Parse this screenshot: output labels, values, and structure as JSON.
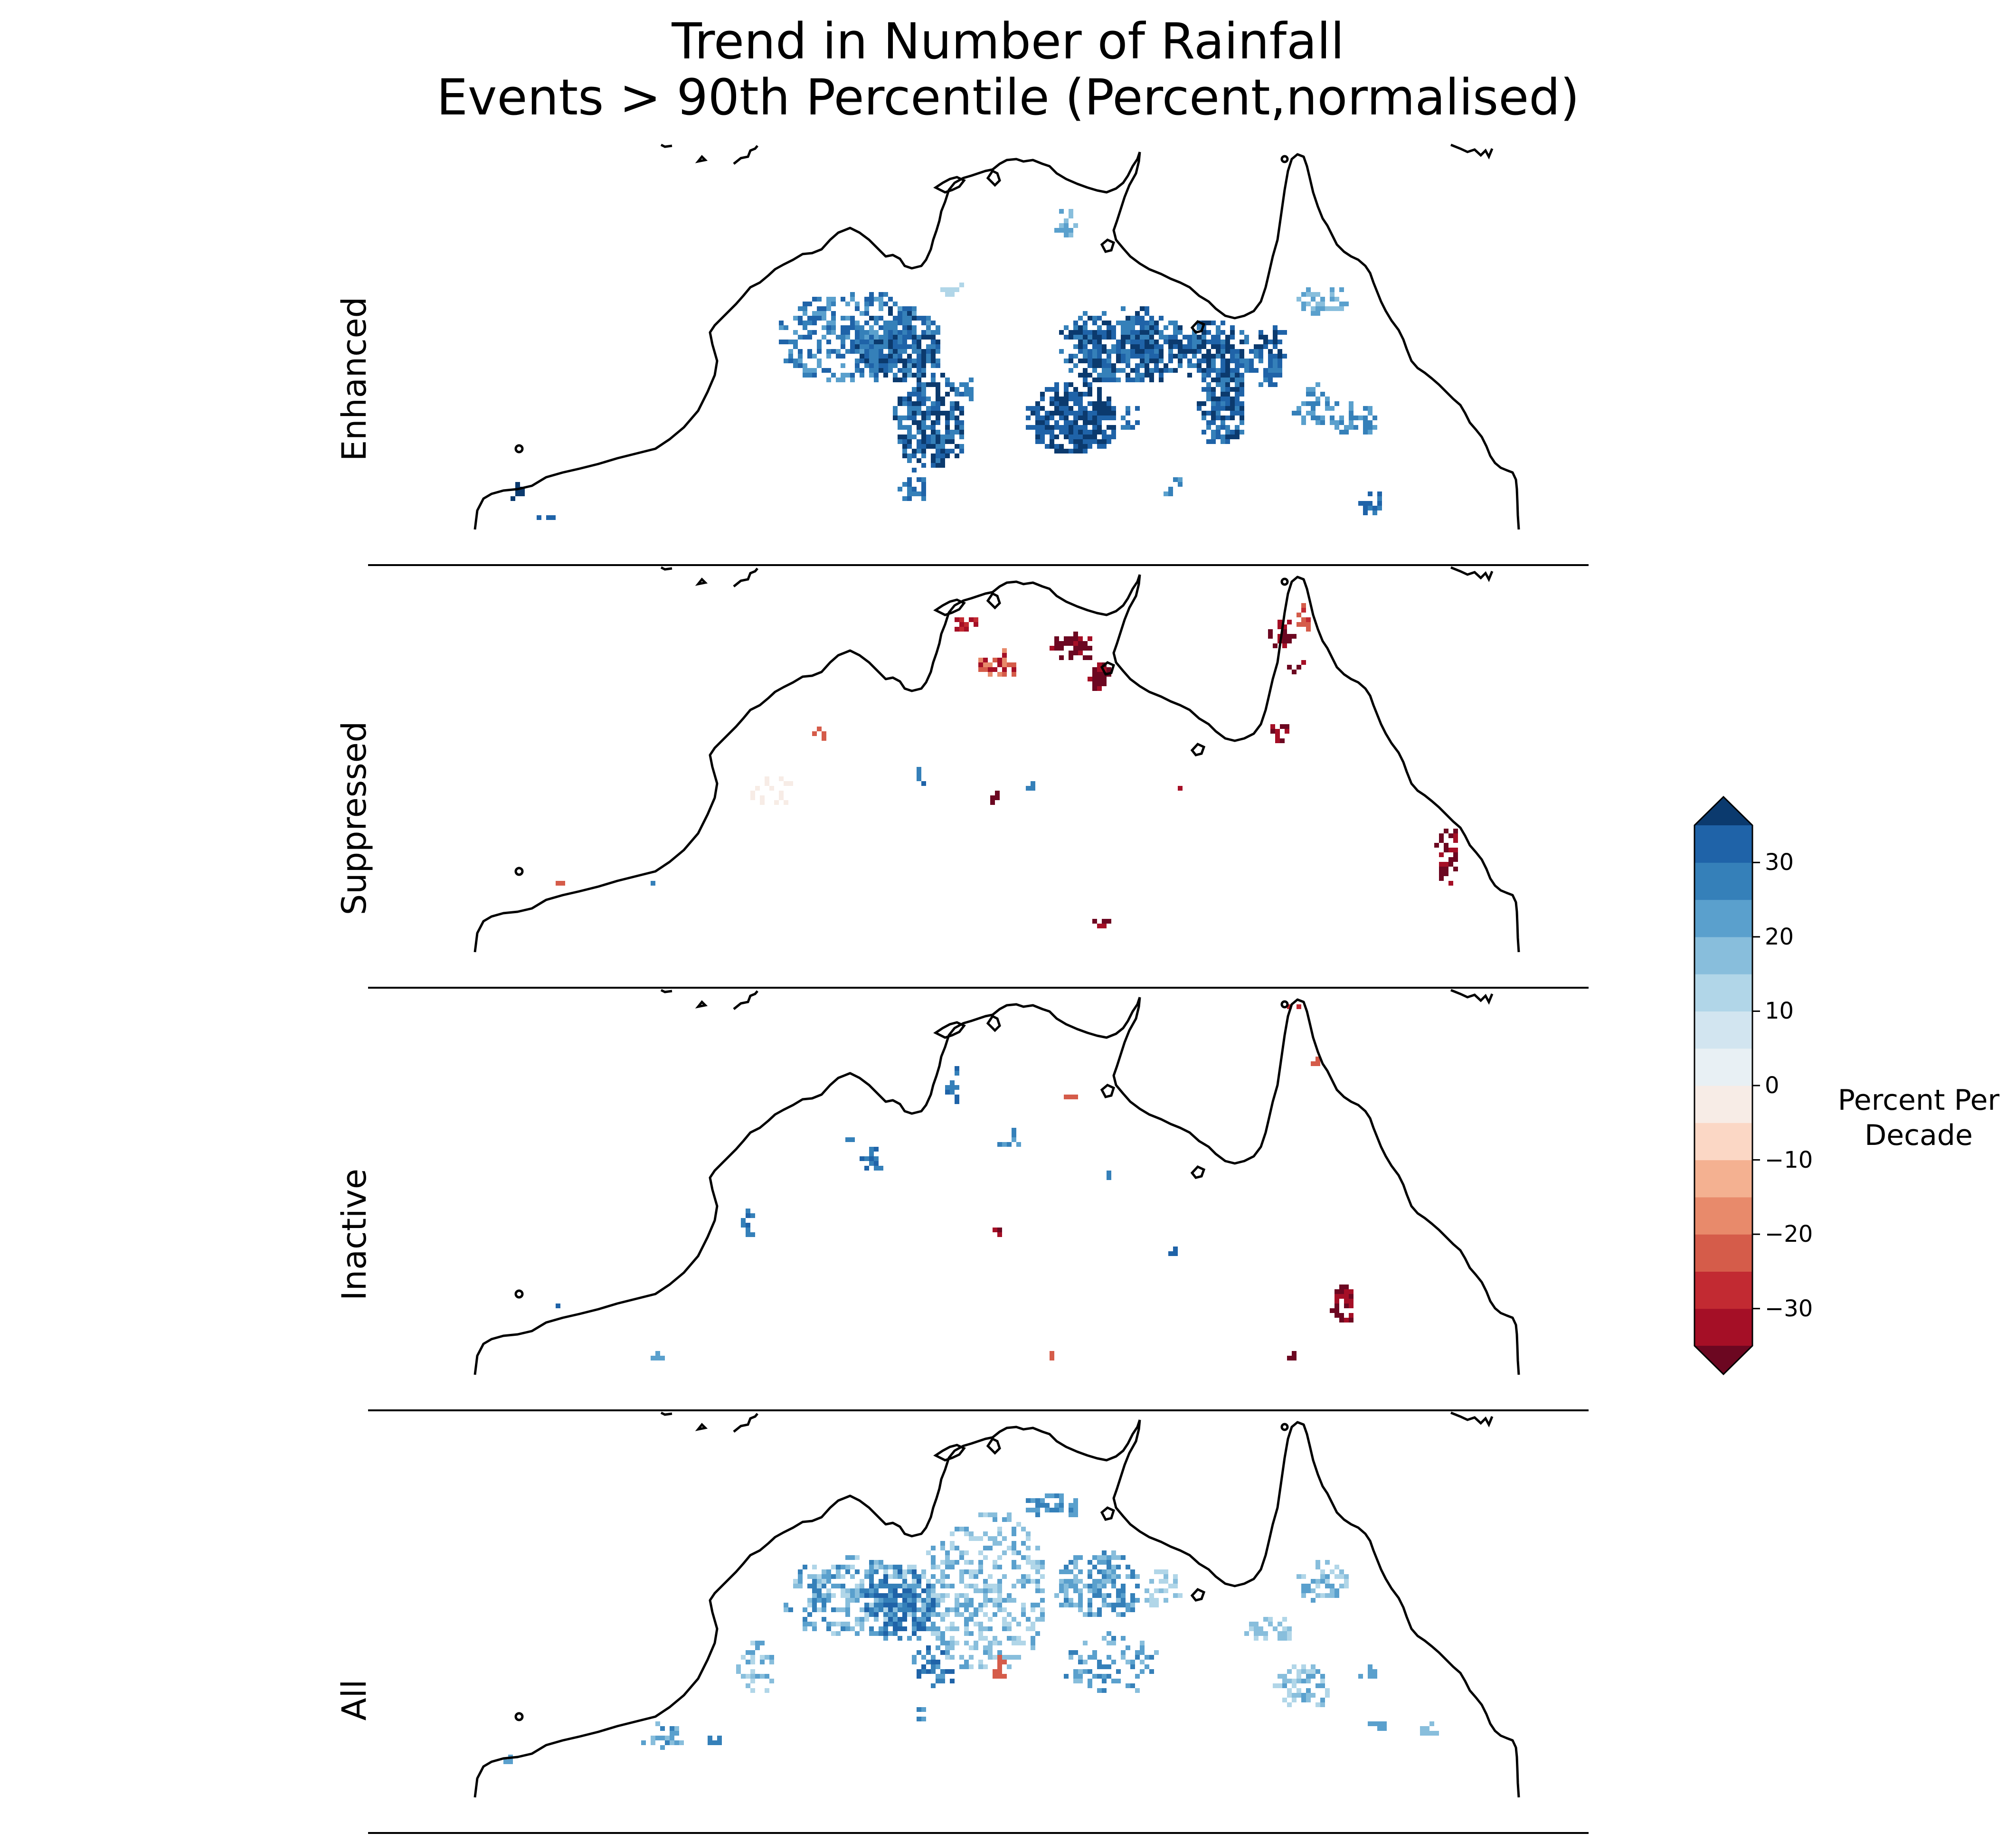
{
  "title": "Trend in Number of Rainfall\nEvents > 90th Percentile (Percent,normalised)",
  "panels": [
    {
      "label": "Enhanced"
    },
    {
      "label": "Suppressed"
    },
    {
      "label": "Inactive"
    },
    {
      "label": "All"
    }
  ],
  "colorbar": {
    "label": "Percent Per\nDecade",
    "ticks": [
      "30",
      "20",
      "10",
      "0",
      "−10",
      "−20",
      "−30"
    ],
    "tick_values": [
      30,
      20,
      10,
      0,
      -10,
      -20,
      -30
    ],
    "range": [
      -35,
      35
    ],
    "extend": "both",
    "colors": [
      "#a50f26",
      "#c22a32",
      "#d55c4a",
      "#e88a6b",
      "#f4b191",
      "#fbd7c5",
      "#f7ece6",
      "#e8f0f4",
      "#d2e5f0",
      "#b1d6e8",
      "#88bedc",
      "#5aa0cd",
      "#3580b9",
      "#1f63a8"
    ],
    "under_color": "#6c0721",
    "over_color": "#0b3a6e"
  },
  "chart_data": {
    "type": "heatmap",
    "region": "Northern Australia",
    "variable": "Trend in number of rainfall events > 90th percentile",
    "units": "Percent Per Decade",
    "panels": [
      {
        "name": "Enhanced",
        "summary": "predominantly positive trends (blue), strongest (>30) over central Northern Territory and Gulf country"
      },
      {
        "name": "Suppressed",
        "summary": "scattered strong negative trends (red) mainly on Top End north coast and Cape York"
      },
      {
        "name": "Inactive",
        "summary": "sparse scattered cells, mostly weak positive and few strong negative"
      },
      {
        "name": "All",
        "summary": "widespread weak-to-moderate positive trends (light blue) across the Top End"
      }
    ]
  }
}
